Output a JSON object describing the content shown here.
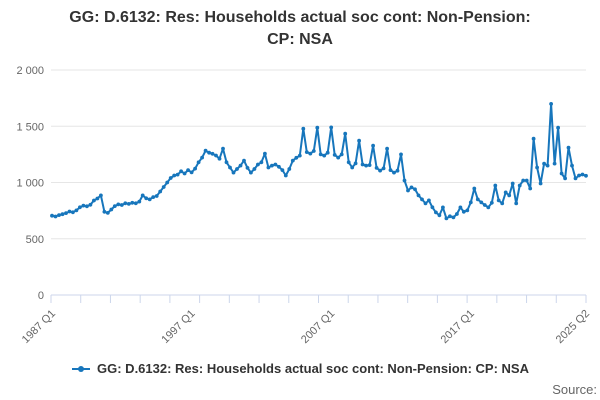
{
  "title": {
    "line1": "GG: D.6132: Res: Households actual soc cont: Non-Pension:",
    "line2": "CP: NSA"
  },
  "legend": {
    "label": "GG: D.6132: Res: Households actual soc cont: Non-Pension: CP: NSA"
  },
  "source_label": "Source:",
  "colors": {
    "series": "#1776bc",
    "grid": "#e6e6e6",
    "axis": "#ccd6eb",
    "tick_label": "#666666",
    "title": "#333333"
  },
  "chart_data": {
    "type": "line",
    "title": "GG: D.6132: Res: Households actual soc cont: Non-Pension: CP: NSA",
    "frequency": "quarterly",
    "x_start": "1987 Q1",
    "x_end": "2025 Q2",
    "grid": "horizontal-only",
    "legend_position": "bottom-center",
    "ylim": [
      0,
      2000
    ],
    "yticks": {
      "values": [
        0,
        500,
        1000,
        1500,
        2000
      ],
      "labels": [
        "0",
        "500",
        "1 000",
        "1 500",
        "2 000"
      ]
    },
    "xticks": {
      "indices": [
        0,
        40,
        80,
        120,
        153
      ],
      "labels": [
        "1987 Q1",
        "1997 Q1",
        "2007 Q1",
        "2017 Q1",
        "2025 Q2"
      ],
      "minor_tick_count": 19,
      "label_rotation": -45
    },
    "values": [
      705,
      698,
      710,
      718,
      728,
      742,
      735,
      752,
      780,
      795,
      788,
      802,
      840,
      858,
      885,
      740,
      730,
      760,
      790,
      805,
      800,
      815,
      810,
      820,
      815,
      830,
      885,
      860,
      850,
      870,
      880,
      920,
      960,
      1000,
      1040,
      1062,
      1070,
      1100,
      1080,
      1110,
      1090,
      1124,
      1180,
      1221,
      1283,
      1265,
      1255,
      1240,
      1212,
      1301,
      1180,
      1133,
      1088,
      1120,
      1150,
      1195,
      1130,
      1088,
      1120,
      1160,
      1180,
      1257,
      1133,
      1150,
      1160,
      1140,
      1110,
      1062,
      1120,
      1195,
      1220,
      1239,
      1478,
      1270,
      1257,
      1280,
      1487,
      1250,
      1239,
      1265,
      1490,
      1245,
      1221,
      1250,
      1434,
      1180,
      1133,
      1170,
      1372,
      1160,
      1150,
      1155,
      1328,
      1130,
      1106,
      1125,
      1301,
      1110,
      1088,
      1105,
      1250,
      1018,
      929,
      956,
      940,
      885,
      850,
      814,
      841,
      780,
      734,
      708,
      779,
      681,
      700,
      690,
      720,
      779,
      740,
      752,
      823,
      947,
      850,
      823,
      800,
      779,
      820,
      973,
      841,
      814,
      912,
      885,
      991,
      814,
      973,
      1018,
      1018,
      947,
      1389,
      1133,
      991,
      1168,
      1150,
      1699,
      1168,
      1487,
      1080,
      1036,
      1310,
      1150,
      1036,
      1062,
      1071,
      1060
    ]
  }
}
